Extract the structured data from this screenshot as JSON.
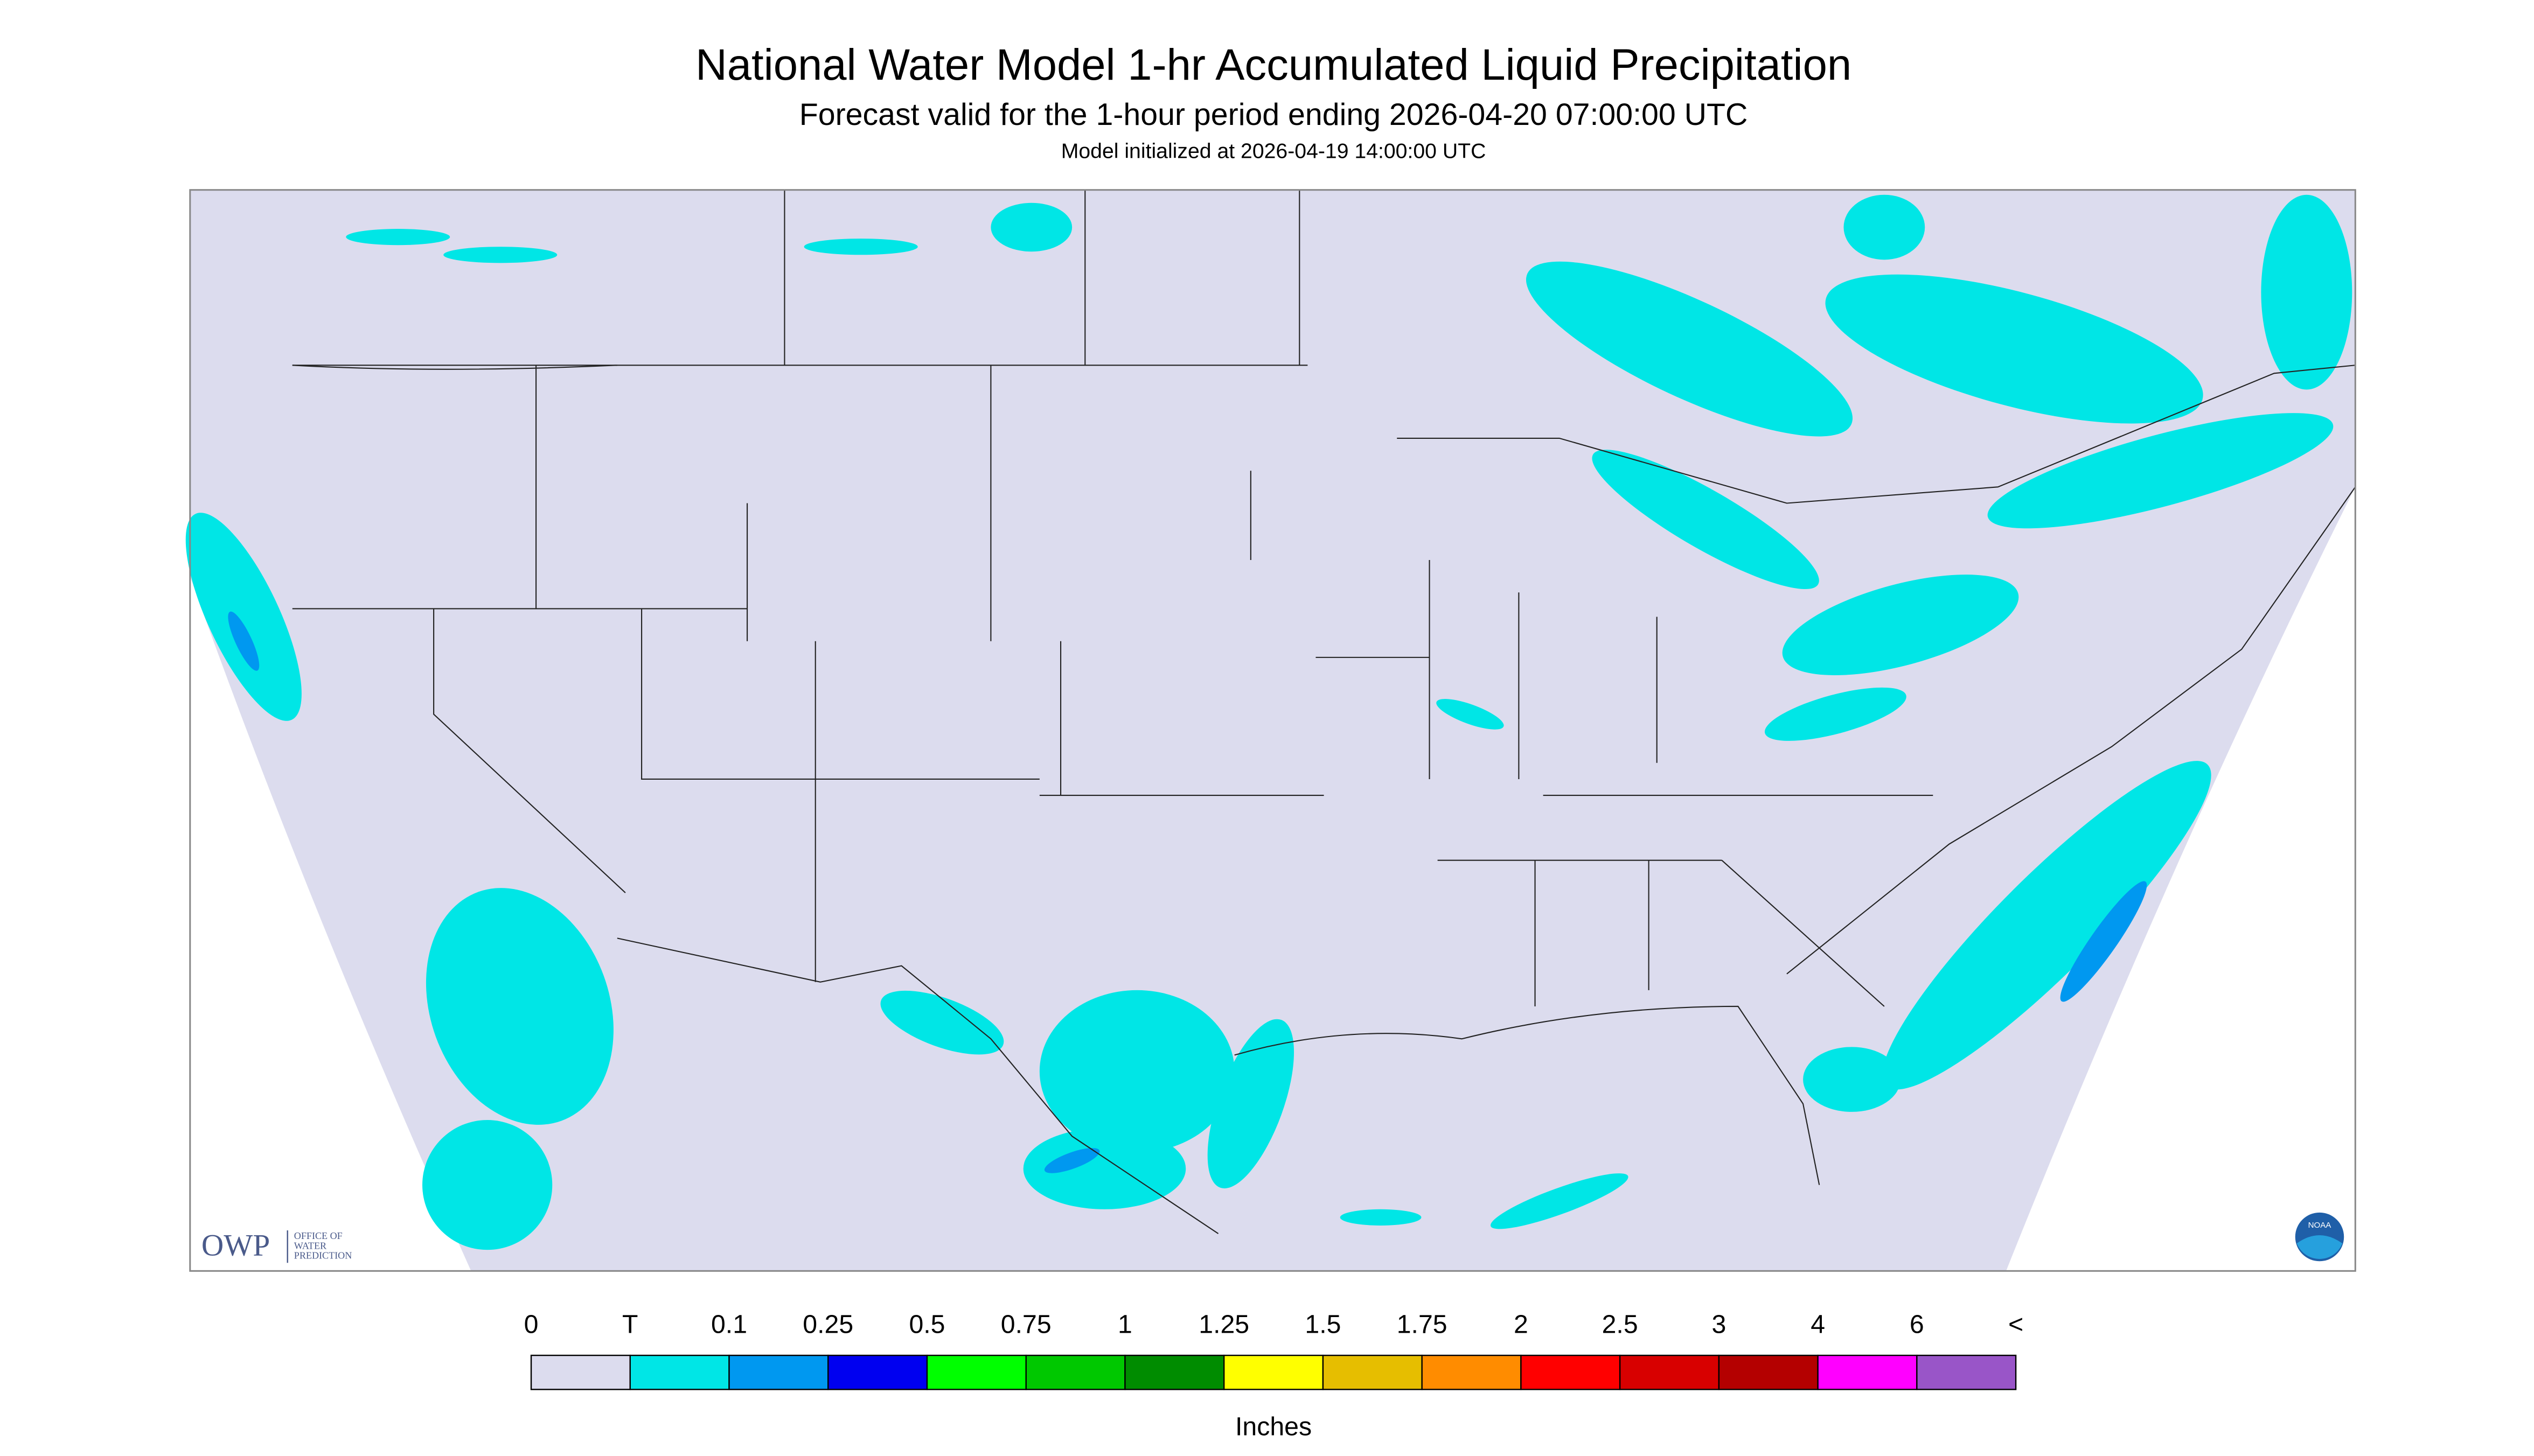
{
  "header": {
    "title": "National Water Model 1-hr Accumulated Liquid Precipitation",
    "subtitle": "Forecast valid for the 1-hour period ending 2026-04-20 07:00:00 UTC",
    "init": "Model initialized at 2026-04-19 14:00:00 UTC"
  },
  "legend": {
    "labels": [
      "0",
      "T",
      "0.1",
      "0.25",
      "0.5",
      "0.75",
      "1",
      "1.25",
      "1.5",
      "1.75",
      "2",
      "2.5",
      "3",
      "4",
      "6",
      "<"
    ],
    "colors": [
      "#dcdcee",
      "#00e6e6",
      "#0098f0",
      "#0000f0",
      "#00ff00",
      "#00c800",
      "#008c00",
      "#ffff00",
      "#e6be00",
      "#ff8c00",
      "#ff0000",
      "#d80000",
      "#b40000",
      "#ff00ff",
      "#9955c8"
    ],
    "unit": "Inches"
  },
  "logos": {
    "owp": "OWP",
    "owp_name": [
      "OFFICE OF",
      "WATER",
      "PREDICTION"
    ],
    "noaa": "NOAA"
  }
}
